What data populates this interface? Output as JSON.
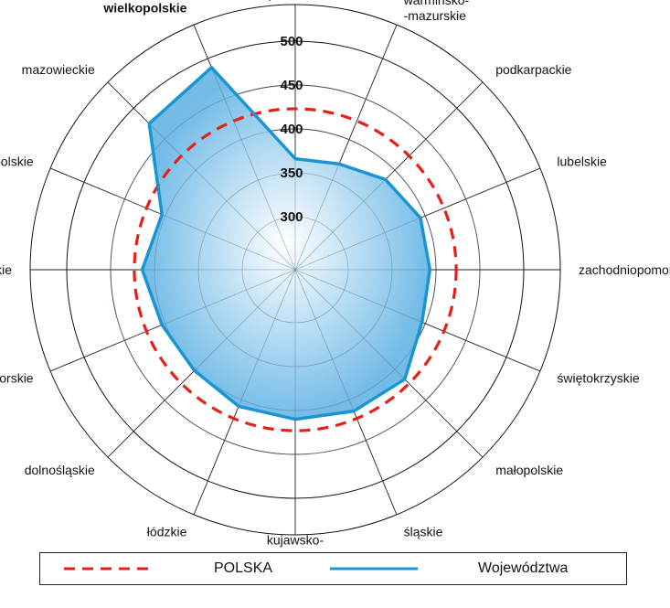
{
  "chart_data": {
    "type": "radar",
    "categories": [
      "podlaskie",
      "warmińsko-\n-mazurskie",
      "podkarpackie",
      "lubelskie",
      "zachodniopomorskie",
      "świętokrzyskie",
      "małopolskie",
      "śląskie",
      "kujawsko-\n-pomorskie",
      "łódzkie",
      "dolnośląskie",
      "pomorskie",
      "lubuskie",
      "opolskie",
      "mazowieckie",
      "wielkopolskie"
    ],
    "highlighted_category": "wielkopolskie",
    "rlim": [
      300,
      500
    ],
    "ticks": [
      300,
      350,
      400,
      450,
      500
    ],
    "grid": true,
    "series": [
      {
        "name": "POLSKA",
        "color": "#e32119",
        "style": "dashed",
        "values": [
          423,
          423,
          423,
          423,
          423,
          423,
          423,
          423,
          423,
          423,
          423,
          423,
          423,
          423,
          423,
          423
        ]
      },
      {
        "name": "Województwa",
        "color": "#1b95d2",
        "style": "solid",
        "fill": true,
        "values": [
          366,
          370,
          385,
          394,
          393,
          396,
          416,
          414,
          410,
          408,
          402,
          404,
          414,
          404,
          475,
          489
        ]
      }
    ]
  },
  "legend": {
    "polska_label": "POLSKA",
    "wojewodztwa_label": "Województwa"
  }
}
